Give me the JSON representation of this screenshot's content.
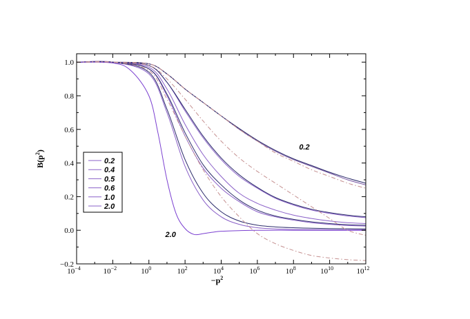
{
  "chart_data": {
    "type": "line",
    "xlabel": "−p",
    "xlabel_sup": "2",
    "ylabel": "B(p",
    "ylabel_sup": "2",
    "ylabel_close": ")",
    "xscale": "log",
    "xlim_exp": [
      -4,
      12
    ],
    "ylim": [
      -0.2,
      1.05
    ],
    "x_ticks": [
      {
        "base": "10",
        "exp": "−4",
        "e": -4
      },
      {
        "base": "10",
        "exp": "−2",
        "e": -2
      },
      {
        "base": "10",
        "exp": "0",
        "e": 0
      },
      {
        "base": "10",
        "exp": "2",
        "e": 2
      },
      {
        "base": "10",
        "exp": "4",
        "e": 4
      },
      {
        "base": "10",
        "exp": "6",
        "e": 6
      },
      {
        "base": "10",
        "exp": "8",
        "e": 8
      },
      {
        "base": "10",
        "exp": "10",
        "e": 10
      },
      {
        "base": "10",
        "exp": "12",
        "e": 12
      }
    ],
    "y_ticks": [
      {
        "label": "−0.2",
        "v": -0.2
      },
      {
        "label": "0.0",
        "v": 0.0
      },
      {
        "label": "0.2",
        "v": 0.2
      },
      {
        "label": "0.4",
        "v": 0.4
      },
      {
        "label": "0.6",
        "v": 0.6
      },
      {
        "label": "0.8",
        "v": 0.8
      },
      {
        "label": "1.0",
        "v": 1.0
      }
    ],
    "grid": false,
    "legend_position": "left-middle",
    "legend": [
      "0.2",
      "0.4",
      "0.5",
      "0.6",
      "1.0",
      "2.0"
    ],
    "annotations": [
      {
        "text": "0.2",
        "x_exp": 8.6,
        "y": 0.48
      },
      {
        "text": "2.0",
        "x_exp": 1.2,
        "y": -0.04
      }
    ],
    "series": [
      {
        "name": "0.2",
        "color": "#7b5aa6",
        "x_exp": [
          -4,
          -2,
          0,
          1,
          2,
          3,
          4,
          5,
          6,
          7,
          8,
          9,
          10,
          11,
          12
        ],
        "y": [
          1.0,
          1.0,
          0.99,
          0.93,
          0.84,
          0.76,
          0.68,
          0.6,
          0.53,
          0.47,
          0.42,
          0.38,
          0.34,
          0.3,
          0.27
        ]
      },
      {
        "name": "0.2",
        "color": "#2a2a6a",
        "x_exp": [
          -4,
          -2,
          0,
          1,
          2,
          3,
          4,
          5,
          6,
          7,
          8,
          9,
          10,
          11,
          12
        ],
        "y": [
          1.0,
          1.0,
          0.99,
          0.93,
          0.84,
          0.76,
          0.68,
          0.605,
          0.535,
          0.475,
          0.425,
          0.385,
          0.345,
          0.31,
          0.28
        ]
      },
      {
        "name": "0.4",
        "color": "#8a60c8",
        "x_exp": [
          -4,
          -2,
          0,
          1,
          2,
          3,
          4,
          5,
          6,
          7,
          8,
          9,
          10,
          11,
          12
        ],
        "y": [
          1.0,
          1.0,
          0.98,
          0.88,
          0.71,
          0.55,
          0.42,
          0.32,
          0.25,
          0.19,
          0.15,
          0.12,
          0.1,
          0.085,
          0.075
        ]
      },
      {
        "name": "0.4",
        "color": "#2a2a6a",
        "x_exp": [
          -4,
          -2,
          0,
          1,
          2,
          3,
          4,
          5,
          6,
          7,
          8,
          9,
          10,
          11,
          12
        ],
        "y": [
          1.0,
          1.0,
          0.98,
          0.88,
          0.72,
          0.56,
          0.43,
          0.33,
          0.255,
          0.195,
          0.155,
          0.125,
          0.105,
          0.09,
          0.08
        ]
      },
      {
        "name": "0.5",
        "color": "#8a60c8",
        "x_exp": [
          -4,
          -2,
          0,
          1,
          2,
          3,
          4,
          5,
          6,
          7,
          8,
          9,
          10,
          11,
          12
        ],
        "y": [
          1.0,
          1.0,
          0.97,
          0.84,
          0.63,
          0.45,
          0.32,
          0.22,
          0.16,
          0.12,
          0.09,
          0.07,
          0.055,
          0.045,
          0.04
        ]
      },
      {
        "name": "0.6",
        "color": "#8a60c8",
        "x_exp": [
          -4,
          -2,
          0,
          1,
          2,
          3,
          4,
          5,
          6,
          7,
          8,
          9,
          10,
          11,
          12
        ],
        "y": [
          1.0,
          1.0,
          0.96,
          0.8,
          0.56,
          0.37,
          0.25,
          0.17,
          0.11,
          0.08,
          0.06,
          0.045,
          0.035,
          0.028,
          0.025
        ]
      },
      {
        "name": "0.6",
        "color": "#2a2a6a",
        "x_exp": [
          -4,
          -2,
          0,
          1,
          2,
          3,
          4,
          5,
          6,
          7,
          8,
          9,
          10,
          11,
          12
        ],
        "y": [
          1.0,
          1.0,
          0.96,
          0.81,
          0.58,
          0.39,
          0.27,
          0.18,
          0.12,
          0.085,
          0.065,
          0.05,
          0.04,
          0.033,
          0.03
        ]
      },
      {
        "name": "1.0",
        "color": "#8a60c8",
        "x_exp": [
          -4,
          -2,
          0,
          1,
          2,
          3,
          4,
          5,
          6,
          7,
          8,
          9,
          10,
          11,
          12
        ],
        "y": [
          1.0,
          1.0,
          0.93,
          0.7,
          0.38,
          0.18,
          0.08,
          0.035,
          0.015,
          0.008,
          0.005,
          0.004,
          0.003,
          0.003,
          0.003
        ]
      },
      {
        "name": "1.0",
        "color": "#2a2a6a",
        "x_exp": [
          -4,
          -2,
          0,
          1,
          2,
          3,
          4,
          5,
          6,
          7,
          8,
          9,
          10,
          11,
          12
        ],
        "y": [
          1.0,
          1.0,
          0.94,
          0.72,
          0.42,
          0.22,
          0.11,
          0.055,
          0.03,
          0.02,
          0.015,
          0.012,
          0.01,
          0.009,
          0.008
        ]
      },
      {
        "name": "2.0",
        "color": "#7a3fd0",
        "x_exp": [
          -4,
          -2,
          -1,
          0,
          0.5,
          1,
          1.5,
          2,
          2.5,
          3,
          3.5,
          4,
          5,
          6,
          8,
          10,
          12
        ],
        "y": [
          1.0,
          0.995,
          0.95,
          0.8,
          0.58,
          0.3,
          0.1,
          0.01,
          -0.025,
          -0.02,
          -0.012,
          -0.006,
          -0.002,
          0.0,
          0.0,
          0.0,
          0.0
        ]
      },
      {
        "name": "",
        "color": "#c48f8f",
        "dash": true,
        "x_exp": [
          -4,
          -2,
          0,
          1,
          2,
          3,
          4,
          5,
          6,
          7,
          8,
          9,
          10,
          11,
          12
        ],
        "y": [
          1.0,
          1.0,
          0.95,
          0.78,
          0.56,
          0.36,
          0.2,
          0.08,
          -0.02,
          -0.08,
          -0.12,
          -0.15,
          -0.165,
          -0.175,
          -0.18
        ]
      },
      {
        "name": "",
        "color": "#c48f8f",
        "dash": true,
        "x_exp": [
          -4,
          -2,
          0,
          1,
          2,
          3,
          4,
          5,
          6,
          7,
          8,
          9,
          10,
          11,
          12
        ],
        "y": [
          1.0,
          1.0,
          0.98,
          0.9,
          0.78,
          0.65,
          0.53,
          0.43,
          0.35,
          0.28,
          0.21,
          0.14,
          0.07,
          0.0,
          -0.03
        ]
      },
      {
        "name": "",
        "color": "#c48f8f",
        "dash": true,
        "x_exp": [
          -4,
          -2,
          0,
          1,
          2,
          3,
          4,
          5,
          6,
          7,
          8,
          9,
          10,
          11,
          12
        ],
        "y": [
          1.0,
          1.0,
          0.99,
          0.93,
          0.84,
          0.76,
          0.68,
          0.6,
          0.53,
          0.46,
          0.41,
          0.36,
          0.32,
          0.28,
          0.25
        ]
      }
    ]
  }
}
